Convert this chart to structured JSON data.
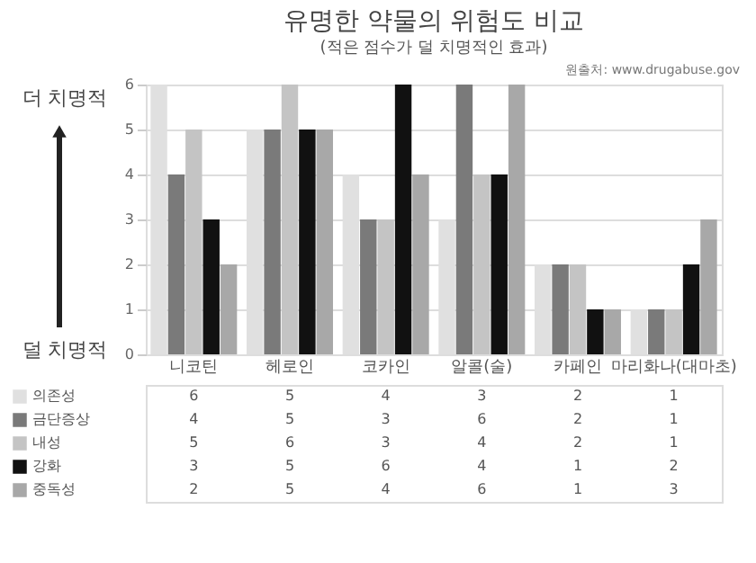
{
  "chart_data": {
    "type": "bar",
    "title": "유명한 약물의 위험도 비교",
    "subtitle": "(적은 점수가 덜 치명적인 효과)",
    "categories": [
      "니코틴",
      "헤로인",
      "코카인",
      "알콜(술)",
      "카페인",
      "마리화나(대마초)"
    ],
    "series": [
      {
        "name": "의존성",
        "color": "#e0e0e0",
        "values": [
          6,
          5,
          4,
          3,
          2,
          1
        ]
      },
      {
        "name": "금단증상",
        "color": "#7a7a7a",
        "values": [
          4,
          5,
          3,
          6,
          2,
          1
        ]
      },
      {
        "name": "내성",
        "color": "#c4c4c4",
        "values": [
          5,
          6,
          3,
          4,
          2,
          1
        ]
      },
      {
        "name": "강화",
        "color": "#111111",
        "values": [
          3,
          5,
          6,
          4,
          1,
          2
        ]
      },
      {
        "name": "중독성",
        "color": "#a8a8a8",
        "values": [
          2,
          5,
          4,
          6,
          1,
          3
        ]
      }
    ],
    "ylim": [
      0,
      6
    ],
    "yticks": [
      0,
      1,
      2,
      3,
      4,
      5,
      6
    ],
    "grid": "y",
    "legend": "bottom",
    "data_labels": true,
    "annotations": [
      "원출처: www.drugabuse.gov",
      "더 치명적",
      "덜 치명적"
    ]
  }
}
